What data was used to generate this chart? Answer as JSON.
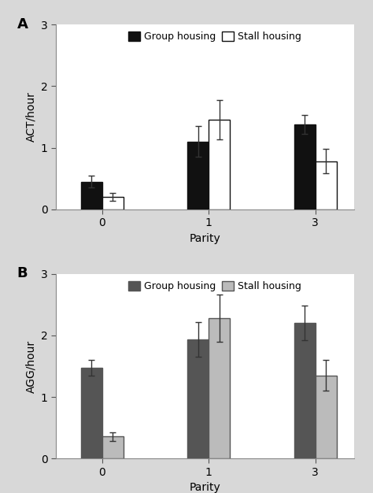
{
  "panel_A": {
    "title_label": "A",
    "ylabel": "ACT/hour",
    "xlabel": "Parity",
    "categories": [
      "0",
      "1",
      "3"
    ],
    "group_housing_values": [
      0.45,
      1.1,
      1.38
    ],
    "group_housing_errors": [
      0.1,
      0.25,
      0.15
    ],
    "stall_housing_values": [
      0.2,
      1.45,
      0.78
    ],
    "stall_housing_errors": [
      0.06,
      0.32,
      0.2
    ],
    "ylim": [
      0,
      3
    ],
    "yticks": [
      0,
      1,
      2,
      3
    ],
    "group_color": "#111111",
    "stall_color": "#ffffff",
    "stall_edgecolor": "#111111",
    "legend_labels": [
      "Group housing",
      "Stall housing"
    ]
  },
  "panel_B": {
    "title_label": "B",
    "ylabel": "AGG/hour",
    "xlabel": "Parity",
    "categories": [
      "0",
      "1",
      "3"
    ],
    "group_housing_values": [
      1.47,
      1.93,
      2.2
    ],
    "group_housing_errors": [
      0.13,
      0.28,
      0.28
    ],
    "stall_housing_values": [
      0.36,
      2.28,
      1.35
    ],
    "stall_housing_errors": [
      0.07,
      0.38,
      0.25
    ],
    "ylim": [
      0,
      3
    ],
    "yticks": [
      0,
      1,
      2,
      3
    ],
    "group_color": "#555555",
    "stall_color": "#bbbbbb",
    "stall_edgecolor": "#555555",
    "legend_labels": [
      "Group housing",
      "Stall housing"
    ]
  },
  "bar_width": 0.3,
  "x_positions": [
    0.5,
    2.0,
    3.5
  ],
  "xlim": [
    0.0,
    4.2
  ],
  "xtick_positions": [
    0.65,
    2.15,
    3.65
  ],
  "background_color": "#d8d8d8",
  "plot_background": "#ffffff",
  "figure_size": [
    4.74,
    6.26
  ],
  "dpi": 100
}
